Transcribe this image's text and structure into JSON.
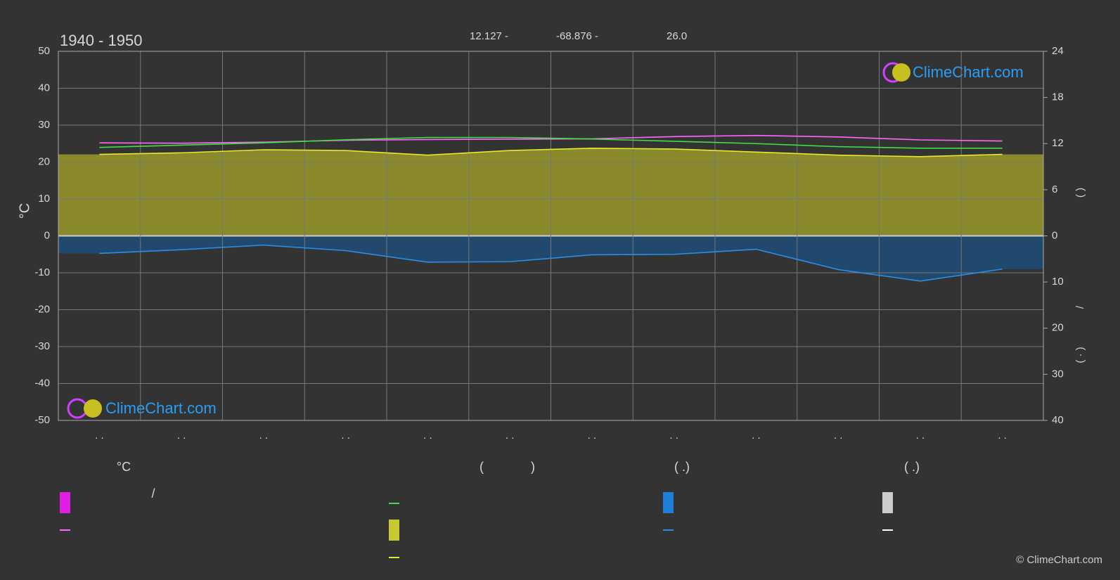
{
  "header": {
    "title": "1940 - 1950",
    "latitude": "12.127 -",
    "longitude": "-68.876 -",
    "elevation": "26.0",
    "logo": "ClimeChart.com",
    "copyright": "© ClimeChart.com"
  },
  "chart_data": {
    "type": "line",
    "y_label": "°C",
    "categories": [
      ". .",
      ". .",
      ". .",
      ". .",
      ". .",
      ". .",
      ". .",
      ". .",
      ". .",
      ". .",
      ". .",
      ". ."
    ],
    "ylim": [
      -50,
      50
    ],
    "yticks": [
      50,
      40,
      30,
      20,
      10,
      0,
      -10,
      -20,
      -30,
      -40,
      -50
    ],
    "y2lim": [
      0,
      24
    ],
    "y2ticks": [
      24,
      18,
      12,
      6,
      0
    ],
    "y3lim": [
      0,
      40
    ],
    "y3ticks": [
      10,
      20,
      30,
      40
    ],
    "right_axis_labels": [
      "(   )",
      "/",
      "( · )"
    ],
    "grid": true,
    "series": [
      {
        "color": "#ff66ff",
        "values": [
          25.2,
          25.1,
          25.4,
          25.9,
          26.1,
          26.2,
          26.3,
          26.9,
          27.2,
          26.8,
          26.0,
          25.7
        ]
      },
      {
        "color": "#44dd44",
        "axis": "y2",
        "values": [
          11.5,
          11.8,
          12.1,
          12.5,
          12.8,
          12.8,
          12.6,
          12.3,
          12.0,
          11.6,
          11.4,
          11.4
        ]
      },
      {
        "color": "#e8e830",
        "axis": "y2",
        "fill": "#9a9a2c",
        "values": [
          10.6,
          10.8,
          11.2,
          11.1,
          10.5,
          11.1,
          11.4,
          11.3,
          10.9,
          10.5,
          10.3,
          10.6
        ]
      },
      {
        "color": "#2a8ee8",
        "axis": "y3",
        "fill": "#1d4e78",
        "values": [
          3.8,
          3.0,
          2.0,
          3.2,
          5.7,
          5.6,
          4.1,
          4.0,
          2.9,
          7.3,
          9.8,
          7.2
        ]
      }
    ],
    "legend_texts": [
      "°C",
      "(",
      ")",
      "( .)",
      "( .)",
      "/"
    ]
  }
}
